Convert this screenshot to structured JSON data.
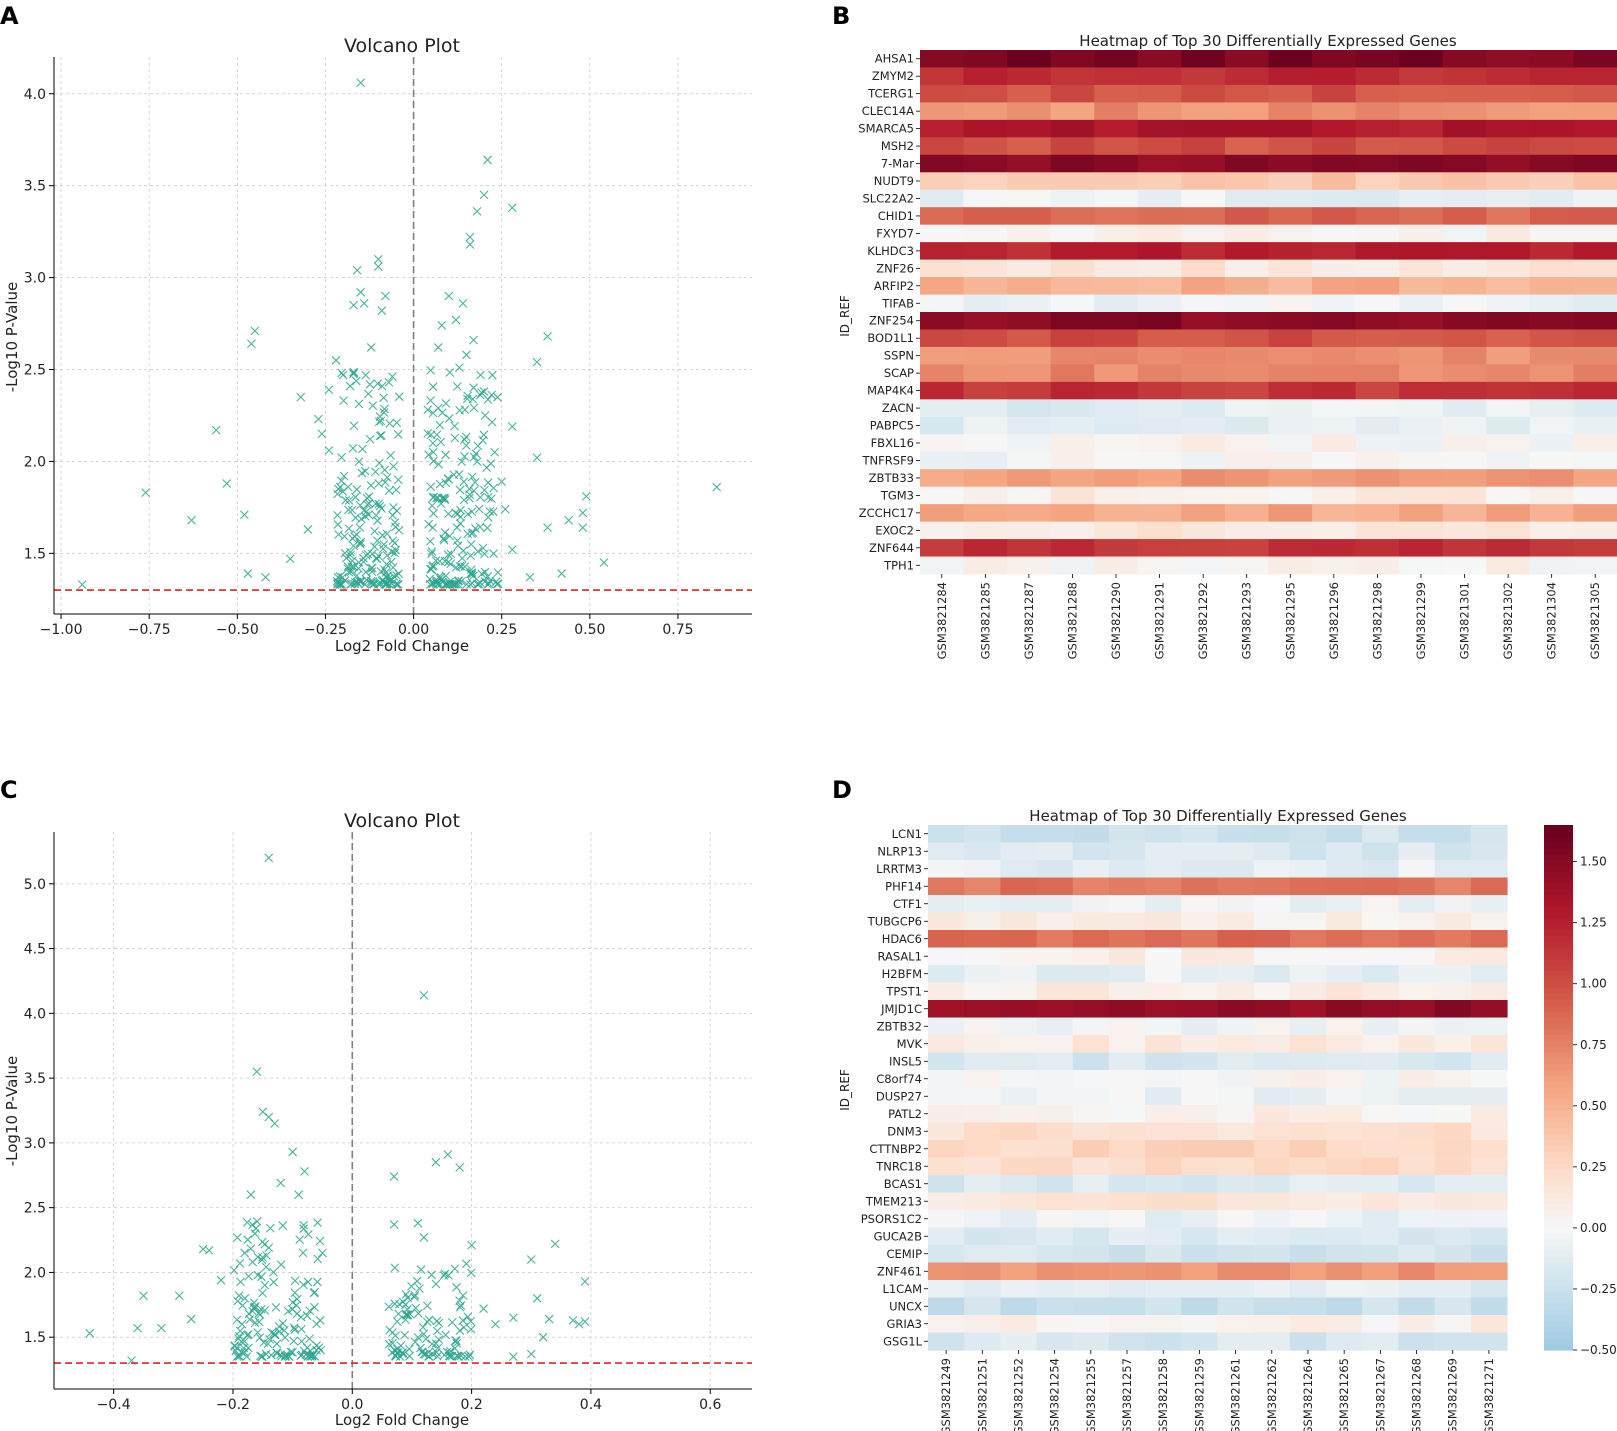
{
  "panels": {
    "A": {
      "label": "A"
    },
    "B": {
      "label": "B"
    },
    "C": {
      "label": "C"
    },
    "D": {
      "label": "D"
    }
  },
  "colors": {
    "scatter": "#2ca58d",
    "threshold": "#d62728",
    "zero_line": "#808080",
    "grid": "#cccccc",
    "cmap_low": "#9ecae1",
    "cmap_mid": "#f7f7f7",
    "cmap_high": "#67001f"
  },
  "chart_data": [
    {
      "id": "A",
      "type": "scatter",
      "marker": "x",
      "title": "Volcano Plot",
      "xlabel": "Log2 Fold Change",
      "ylabel": "-Log10 P-Value",
      "xlim": [
        -1.02,
        0.96
      ],
      "ylim": [
        1.17,
        4.2
      ],
      "xticks": [
        -1.0,
        -0.75,
        -0.5,
        -0.25,
        0.0,
        0.25,
        0.5,
        0.75
      ],
      "xtick_labels": [
        "−1.00",
        "−0.75",
        "−0.50",
        "−0.25",
        "0.00",
        "0.25",
        "0.50",
        "0.75"
      ],
      "yticks": [
        1.5,
        2.0,
        2.5,
        3.0,
        3.5,
        4.0
      ],
      "ytick_labels": [
        "1.5",
        "2.0",
        "2.5",
        "3.0",
        "3.5",
        "4.0"
      ],
      "threshold_y": 1.3,
      "zero_x": 0.0,
      "grid": true,
      "points": [
        [
          -0.15,
          4.06
        ],
        [
          0.21,
          3.64
        ],
        [
          0.2,
          3.45
        ],
        [
          0.28,
          3.38
        ],
        [
          0.18,
          3.36
        ],
        [
          0.16,
          3.22
        ],
        [
          0.16,
          3.18
        ],
        [
          -0.1,
          3.1
        ],
        [
          -0.1,
          3.06
        ],
        [
          -0.16,
          3.04
        ],
        [
          -0.45,
          2.71
        ],
        [
          -0.46,
          2.64
        ],
        [
          0.38,
          2.68
        ],
        [
          0.35,
          2.54
        ],
        [
          -0.56,
          2.17
        ],
        [
          -0.53,
          1.88
        ],
        [
          -0.76,
          1.83
        ],
        [
          -0.63,
          1.68
        ],
        [
          -0.48,
          1.71
        ],
        [
          0.86,
          1.86
        ],
        [
          0.49,
          1.81
        ],
        [
          0.48,
          1.72
        ],
        [
          0.44,
          1.68
        ],
        [
          0.38,
          1.64
        ],
        [
          0.48,
          1.64
        ],
        [
          0.35,
          2.02
        ],
        [
          0.28,
          2.19
        ],
        [
          0.54,
          1.45
        ],
        [
          0.42,
          1.39
        ],
        [
          0.33,
          1.37
        ],
        [
          -0.94,
          1.33
        ],
        [
          -0.47,
          1.39
        ],
        [
          -0.42,
          1.37
        ],
        [
          0.28,
          1.52
        ],
        [
          0.26,
          1.74
        ],
        [
          0.25,
          1.89
        ],
        [
          -0.35,
          1.47
        ],
        [
          -0.3,
          1.63
        ],
        [
          -0.24,
          2.06
        ],
        [
          -0.26,
          2.15
        ],
        [
          -0.32,
          2.35
        ],
        [
          -0.24,
          2.39
        ],
        [
          -0.08,
          2.9
        ],
        [
          -0.14,
          2.86
        ],
        [
          -0.15,
          2.92
        ],
        [
          -0.17,
          2.85
        ],
        [
          -0.09,
          2.82
        ],
        [
          0.1,
          2.9
        ],
        [
          0.12,
          2.77
        ],
        [
          0.14,
          2.86
        ],
        [
          0.08,
          2.74
        ],
        [
          -0.22,
          2.55
        ],
        [
          -0.2,
          2.47
        ],
        [
          -0.12,
          2.62
        ],
        [
          0.17,
          2.66
        ],
        [
          0.15,
          2.58
        ],
        [
          0.07,
          2.62
        ],
        [
          0.13,
          2.51
        ],
        [
          0.19,
          2.47
        ],
        [
          -0.07,
          2.43
        ],
        [
          -0.18,
          2.41
        ],
        [
          0.2,
          2.38
        ],
        [
          0.07,
          2.29
        ],
        [
          -0.27,
          2.23
        ],
        [
          0.23,
          2.05
        ]
      ],
      "clusters": [
        {
          "x_min": -0.22,
          "x_max": -0.04,
          "count": 190,
          "y_mode": 1.33,
          "y_max": 2.5,
          "seed": 11
        },
        {
          "x_min": 0.04,
          "x_max": 0.24,
          "count": 190,
          "y_mode": 1.33,
          "y_max": 2.5,
          "seed": 23
        }
      ]
    },
    {
      "id": "B",
      "type": "heatmap",
      "title": "Heatmap of Top 30 Differentially Expressed Genes",
      "ylabel": "ID_REF",
      "rows": [
        "AHSA1",
        "ZMYM2",
        "TCERG1",
        "CLEC14A",
        "SMARCA5",
        "MSH2",
        "7-Mar",
        "NUDT9",
        "SLC22A2",
        "CHID1",
        "FXYD7",
        "KLHDC3",
        "ZNF26",
        "ARFIP2",
        "TIFAB",
        "ZNF254",
        "BOD1L1",
        "SSPN",
        "SCAP",
        "MAP4K4",
        "ZACN",
        "PABPC5",
        "FBXL16",
        "TNFRSF9",
        "ZBTB33",
        "TGM3",
        "ZCCHC17",
        "EXOC2",
        "ZNF644",
        "TPH1"
      ],
      "columns": [
        "GSM3821284",
        "GSM3821285",
        "GSM3821287",
        "GSM3821288",
        "GSM3821290",
        "GSM3821291",
        "GSM3821292",
        "GSM3821293",
        "GSM3821295",
        "GSM3821296",
        "GSM3821298",
        "GSM3821299",
        "GSM3821301",
        "GSM3821302",
        "GSM3821304",
        "GSM3821305"
      ],
      "vmin": -0.5,
      "vmax": 1.6,
      "row_levels": [
        1.5,
        1.15,
        0.95,
        0.65,
        1.25,
        0.95,
        1.45,
        0.35,
        -0.08,
        0.85,
        0.05,
        1.2,
        0.15,
        0.5,
        -0.05,
        1.45,
        0.95,
        0.65,
        0.7,
        1.1,
        -0.1,
        -0.1,
        0.02,
        0.0,
        0.6,
        0.08,
        0.55,
        0.12,
        1.1,
        0.02
      ],
      "jitter": 0.09,
      "seed": 101
    },
    {
      "id": "C",
      "type": "scatter",
      "marker": "x",
      "title": "Volcano Plot",
      "xlabel": "Log2 Fold Change",
      "ylabel": "-Log10 P-Value",
      "xlim": [
        -0.5,
        0.67
      ],
      "ylim": [
        1.1,
        5.4
      ],
      "xticks": [
        -0.4,
        -0.2,
        0.0,
        0.2,
        0.4,
        0.6
      ],
      "xtick_labels": [
        "−0.4",
        "−0.2",
        "0.0",
        "0.2",
        "0.4",
        "0.6"
      ],
      "yticks": [
        1.5,
        2.0,
        2.5,
        3.0,
        3.5,
        4.0,
        4.5,
        5.0
      ],
      "ytick_labels": [
        "1.5",
        "2.0",
        "2.5",
        "3.0",
        "3.5",
        "4.0",
        "4.5",
        "5.0"
      ],
      "threshold_y": 1.3,
      "zero_x": 0.0,
      "grid": true,
      "points": [
        [
          -0.14,
          5.2
        ],
        [
          0.12,
          4.14
        ],
        [
          -0.16,
          3.55
        ],
        [
          -0.15,
          3.24
        ],
        [
          -0.14,
          3.2
        ],
        [
          -0.13,
          3.15
        ],
        [
          -0.1,
          2.93
        ],
        [
          -0.08,
          2.78
        ],
        [
          -0.09,
          2.6
        ],
        [
          -0.17,
          2.6
        ],
        [
          0.16,
          2.91
        ],
        [
          0.14,
          2.85
        ],
        [
          0.18,
          2.81
        ],
        [
          0.07,
          2.74
        ],
        [
          -0.12,
          2.69
        ],
        [
          0.34,
          2.22
        ],
        [
          0.3,
          2.1
        ],
        [
          0.39,
          1.93
        ],
        [
          0.31,
          1.8
        ],
        [
          0.33,
          1.64
        ],
        [
          0.37,
          1.63
        ],
        [
          0.39,
          1.62
        ],
        [
          0.38,
          1.6
        ],
        [
          0.32,
          1.5
        ],
        [
          0.27,
          1.65
        ],
        [
          0.22,
          1.72
        ],
        [
          -0.35,
          1.82
        ],
        [
          -0.29,
          1.82
        ],
        [
          -0.32,
          1.57
        ],
        [
          -0.36,
          1.57
        ],
        [
          -0.27,
          1.64
        ],
        [
          -0.25,
          2.18
        ],
        [
          -0.24,
          2.17
        ],
        [
          -0.22,
          1.94
        ],
        [
          -0.44,
          1.53
        ],
        [
          -0.37,
          1.32
        ],
        [
          0.2,
          2.21
        ],
        [
          0.12,
          2.27
        ],
        [
          0.11,
          2.38
        ],
        [
          0.07,
          2.37
        ],
        [
          -0.05,
          2.15
        ],
        [
          0.09,
          1.83
        ],
        [
          -0.18,
          1.8
        ],
        [
          0.24,
          1.6
        ],
        [
          0.3,
          1.37
        ],
        [
          0.27,
          1.35
        ]
      ],
      "clusters": [
        {
          "x_min": -0.2,
          "x_max": -0.05,
          "count": 150,
          "y_mode": 1.35,
          "y_max": 2.4,
          "seed": 37
        },
        {
          "x_min": 0.06,
          "x_max": 0.2,
          "count": 110,
          "y_mode": 1.35,
          "y_max": 2.1,
          "seed": 53
        }
      ]
    },
    {
      "id": "D",
      "type": "heatmap",
      "title": "Heatmap of Top 30 Differentially Expressed Genes",
      "ylabel": "ID_REF",
      "rows": [
        "LCN1",
        "NLRP13",
        "LRRTM3",
        "PHF14",
        "CTF1",
        "TUBGCP6",
        "HDAC6",
        "RASAL1",
        "H2BFM",
        "TPST1",
        "JMJD1C",
        "ZBTB32",
        "MVK",
        "INSL5",
        "C8orf74",
        "DUSP27",
        "PATL2",
        "DNM3",
        "CTTNBP2",
        "TNRC18",
        "BCAS1",
        "TMEM213",
        "PSORS1C2",
        "GUCA2B",
        "CEMIP",
        "ZNF461",
        "L1CAM",
        "UNCX",
        "GRIA3",
        "GSG1L"
      ],
      "columns": [
        "GSM3821249",
        "GSM3821251",
        "GSM3821252",
        "GSM3821254",
        "GSM3821255",
        "GSM3821257",
        "GSM3821258",
        "GSM3821259",
        "GSM3821261",
        "GSM3821262",
        "GSM3821264",
        "GSM3821265",
        "GSM3821267",
        "GSM3821268",
        "GSM3821269",
        "GSM3821271"
      ],
      "vmin": -0.5,
      "vmax": 1.65,
      "row_levels": [
        -0.22,
        -0.15,
        -0.1,
        0.8,
        -0.04,
        0.08,
        0.85,
        0.06,
        -0.08,
        0.1,
        1.45,
        -0.02,
        0.12,
        -0.17,
        0.02,
        -0.05,
        0.06,
        0.2,
        0.28,
        0.22,
        -0.15,
        0.15,
        -0.06,
        -0.15,
        -0.2,
        0.65,
        -0.12,
        -0.25,
        0.08,
        -0.18
      ],
      "jitter": 0.08,
      "seed": 202,
      "colorbar": {
        "ticks": [
          1.5,
          1.25,
          1.0,
          0.75,
          0.5,
          0.25,
          0.0,
          -0.25,
          -0.5
        ],
        "tick_labels": [
          "1.50",
          "1.25",
          "1.00",
          "0.75",
          "0.50",
          "0.25",
          "0.00",
          "−0.25",
          "−0.50"
        ]
      }
    }
  ]
}
